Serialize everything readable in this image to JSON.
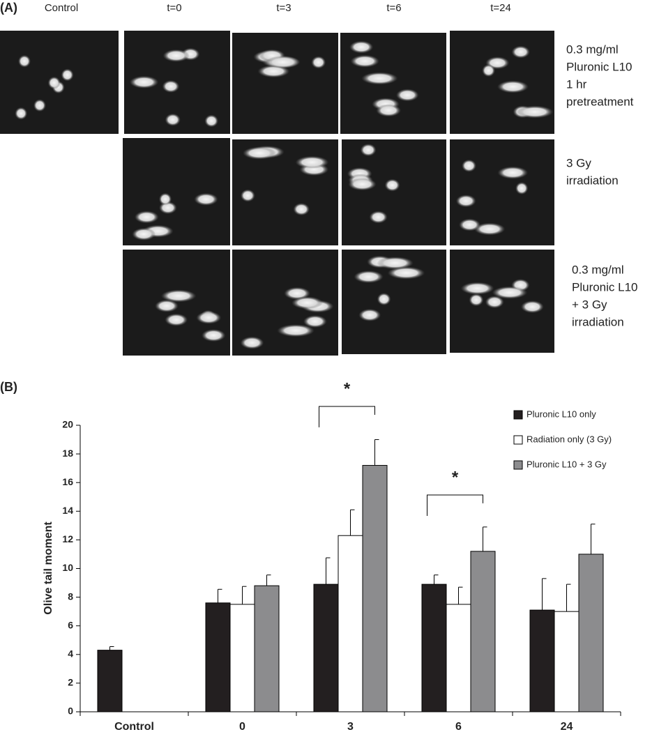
{
  "panel_a": {
    "label": "(A)",
    "columns": [
      "Control",
      "t=0",
      "t=3",
      "t=6",
      "t=24"
    ],
    "rows": [
      [
        "0.3 mg/ml",
        "Pluronic L10",
        "1 hr",
        "pretreatment"
      ],
      [
        "3 Gy",
        "irradiation"
      ],
      [
        "0.3 mg/ml",
        "Pluronic L10",
        "+ 3 Gy",
        "irradiation"
      ]
    ]
  },
  "chart_data": {
    "type": "bar",
    "panel_label": "(B)",
    "y_label": "Olive tail moment",
    "categories": [
      "Control",
      "0",
      "3",
      "6",
      "24"
    ],
    "series": [
      {
        "name": "Pluronic L10 only",
        "color": "#231f20",
        "values": [
          4.3,
          7.6,
          8.9,
          8.9,
          7.1
        ],
        "errors": [
          0.25,
          0.95,
          1.85,
          0.65,
          2.2
        ]
      },
      {
        "name": "Radiation only (3 Gy)",
        "color": "#ffffff",
        "values": [
          null,
          7.5,
          12.3,
          7.5,
          7.0
        ],
        "errors": [
          null,
          1.25,
          1.8,
          1.2,
          1.9
        ]
      },
      {
        "name": "Pluronic L10 + 3 Gy",
        "color": "#8c8c8e",
        "values": [
          null,
          8.8,
          17.2,
          11.2,
          11.0
        ],
        "errors": [
          null,
          0.75,
          1.8,
          1.7,
          2.1
        ]
      }
    ],
    "ylim": [
      0,
      20
    ],
    "yticks": [
      0,
      2,
      4,
      6,
      8,
      10,
      12,
      14,
      16,
      18,
      20
    ],
    "annotations": [
      "*",
      "*"
    ],
    "legend": "top-right"
  }
}
